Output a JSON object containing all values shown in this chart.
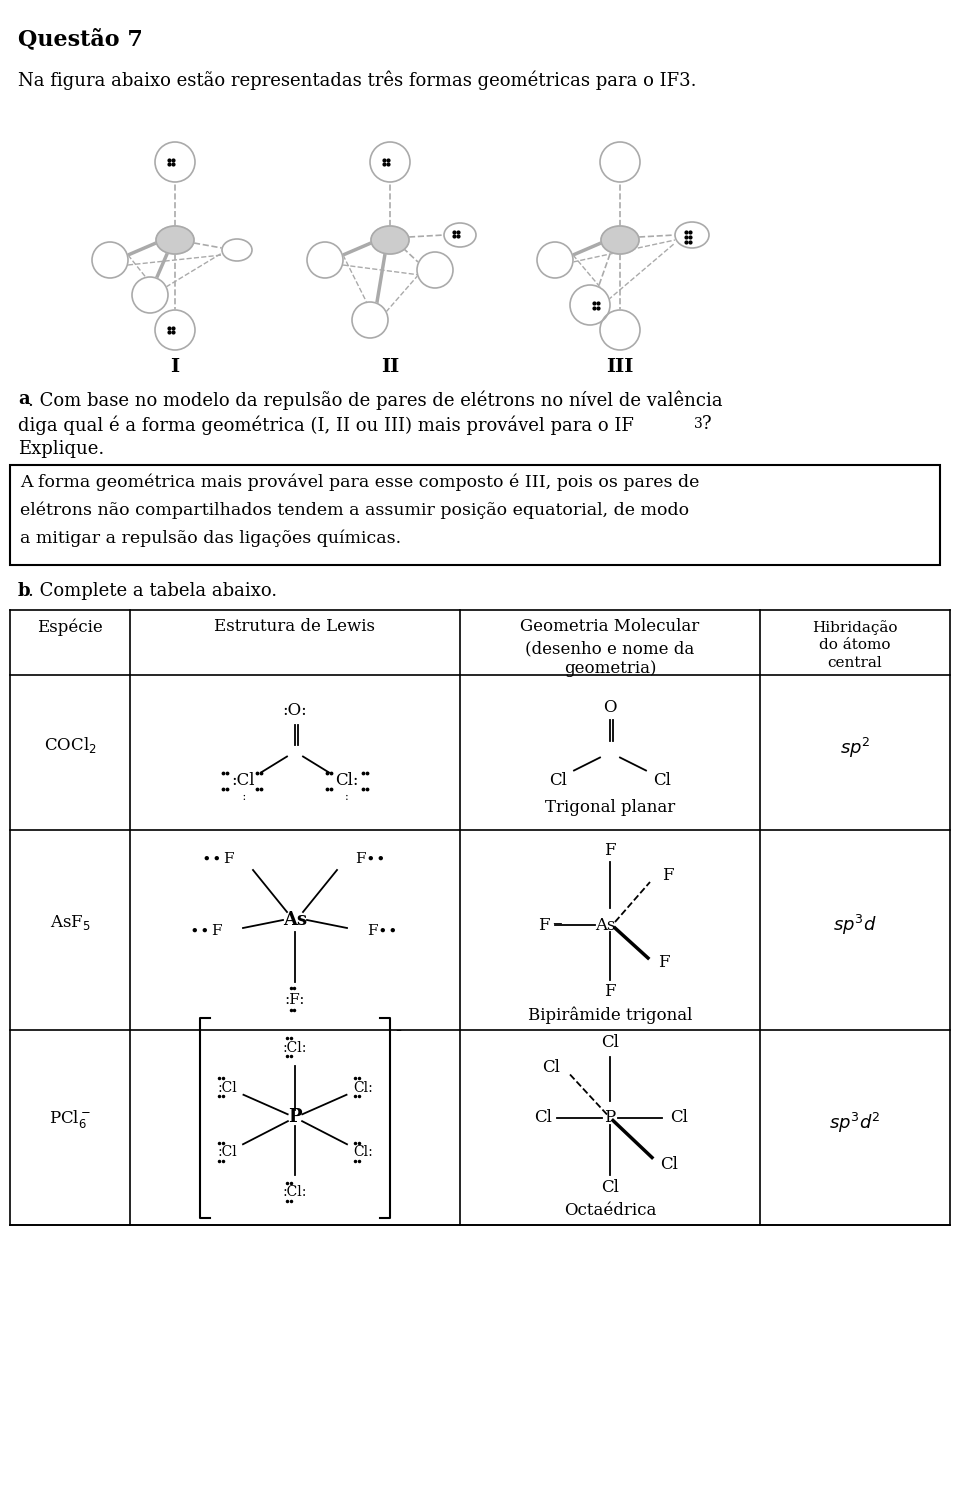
{
  "title": "Questão 7",
  "intro_text": "Na figura abaixo estão representadas três formas geométricas para o IF3.",
  "question_a_label": "a",
  "question_a_text": ". Com base no modelo da repulsão de pares de elétrons no nível de valência\ndiga qual é a forma geométrica (I, II ou III) mais provável para o IF",
  "question_a_sub": "3",
  "question_a_end": "?\nExplique.",
  "answer_box_text": "A forma geométrica mais provável para esse composto é III, pois os pares de\nelétrons não compartilhados tendem a assumir posição equatorial, de modo\na mitigar a repulsão das ligações químicas.",
  "question_b_label": "b",
  "question_b_text": ". Complete a tabela abaixo.",
  "bg_color": "#ffffff",
  "text_color": "#000000",
  "fig_labels": [
    "I",
    "II",
    "III"
  ]
}
